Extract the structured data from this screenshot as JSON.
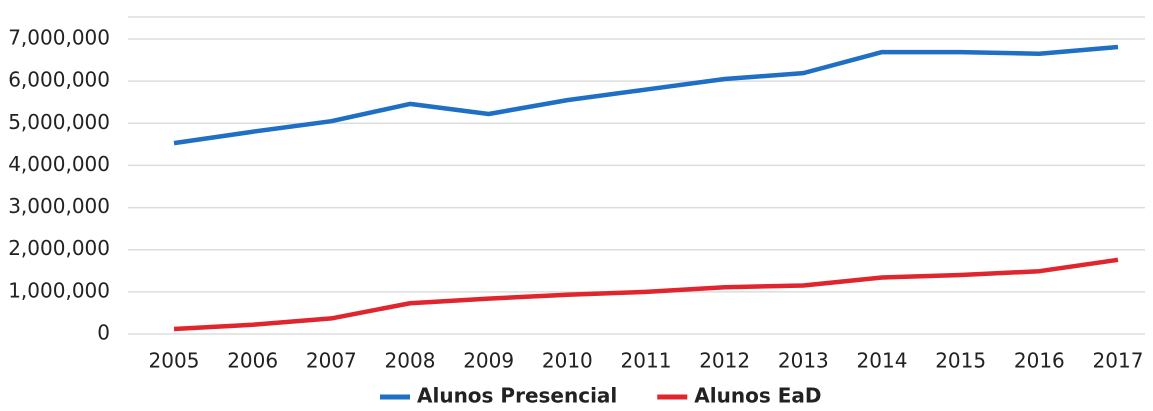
{
  "chart_data": {
    "type": "line",
    "x": [
      2005,
      2006,
      2007,
      2008,
      2009,
      2010,
      2011,
      2012,
      2013,
      2014,
      2015,
      2016,
      2017
    ],
    "series": [
      {
        "name": "Alunos Presencial",
        "color": "#1f6fc5",
        "values": [
          4530000,
          4800000,
          5050000,
          5460000,
          5220000,
          5550000,
          5800000,
          6050000,
          6190000,
          6690000,
          6690000,
          6650000,
          6810000
        ]
      },
      {
        "name": "Alunos EaD",
        "color": "#e0252e",
        "values": [
          120000,
          220000,
          370000,
          730000,
          840000,
          930000,
          1000000,
          1110000,
          1150000,
          1340000,
          1400000,
          1490000,
          1760000
        ]
      }
    ],
    "ylim": [
      0,
      7000000
    ],
    "yticks": [
      0,
      {
        "value": 1000000,
        "label": "1,000,000"
      },
      {
        "value": 2000000,
        "label": "2,000,000"
      },
      {
        "value": 3000000,
        "label": "3,000,000"
      },
      {
        "value": 4000000,
        "label": "4,000,000"
      },
      {
        "value": 5000000,
        "label": "5,000,000"
      },
      {
        "value": 6000000,
        "label": "6,000,000"
      },
      {
        "value": 7000000,
        "label": "7,000,000"
      }
    ],
    "grid": true
  }
}
